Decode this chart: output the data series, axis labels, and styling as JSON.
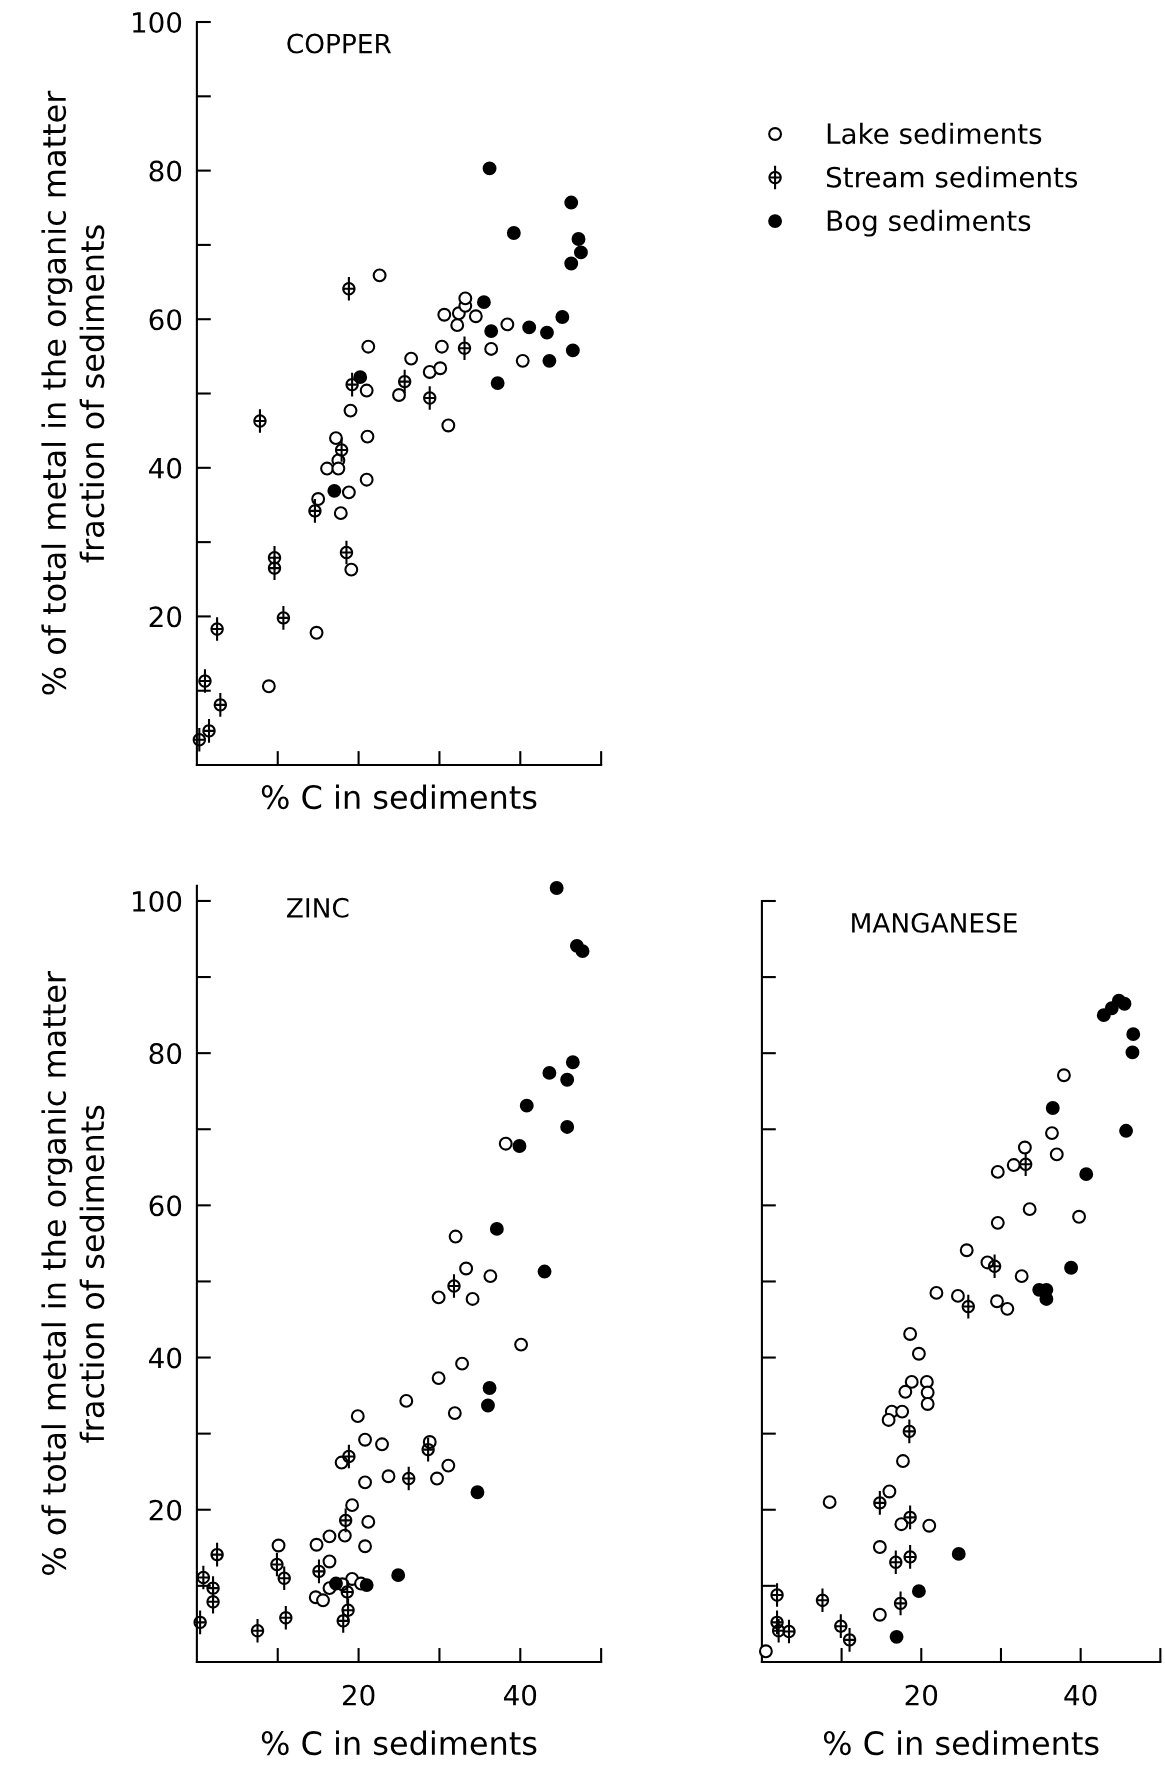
{
  "chart_data": [
    {
      "type": "scatter",
      "title": "COPPER",
      "xlabel": "% C in sediments",
      "ylabel": "% of total metal in the organic matter\nfraction of sediments",
      "xlim": [
        0,
        50
      ],
      "ylim": [
        0,
        100
      ],
      "xticks": [
        {
          "value": 10,
          "label": null
        },
        {
          "value": 20,
          "label": null
        },
        {
          "value": 30,
          "label": null
        },
        {
          "value": 40,
          "label": null
        },
        {
          "value": 50,
          "label": null
        }
      ],
      "yticks": [
        {
          "value": 10,
          "label": null
        },
        20,
        {
          "value": 30,
          "label": null
        },
        40,
        {
          "value": 50,
          "label": null
        },
        60,
        {
          "value": 70,
          "label": null
        },
        80,
        {
          "value": 90,
          "label": null
        },
        100
      ],
      "tick_labels": "y",
      "legend": "right",
      "series": [
        {
          "name": "Lake sediments",
          "color": "#000000",
          "marker": "circle",
          "x": [
            22.6,
            21.2,
            26.5,
            25.0,
            21.0,
            19.0,
            17.2,
            17.5,
            16.1,
            17.5,
            21.1,
            21.0,
            15.0,
            18.8,
            17.8,
            19.1,
            14.8,
            8.9,
            30.3,
            28.8,
            30.1,
            31.1,
            30.6,
            32.2,
            32.4,
            33.2,
            33.2,
            34.5,
            36.4,
            38.4,
            40.3
          ],
          "values": [
            65.9,
            56.3,
            54.7,
            49.8,
            50.4,
            47.7,
            44.0,
            41.0,
            39.9,
            39.9,
            44.2,
            38.4,
            35.8,
            36.7,
            33.9,
            26.3,
            17.8,
            10.6,
            56.3,
            52.9,
            53.4,
            45.7,
            60.6,
            59.2,
            60.8,
            61.8,
            62.8,
            60.4,
            56.0,
            59.3,
            54.4
          ]
        },
        {
          "name": "Stream sediments",
          "color": "#000000",
          "marker": "cross",
          "x": [
            18.8,
            7.8,
            19.2,
            25.7,
            28.8,
            33.1,
            14.6,
            9.6,
            9.6,
            18.5,
            10.7,
            2.5,
            1.0,
            1.5,
            2.9,
            0.3,
            17.9
          ],
          "values": [
            64.1,
            46.3,
            51.2,
            51.6,
            49.4,
            56.1,
            34.2,
            27.9,
            26.5,
            28.6,
            19.8,
            18.3,
            11.3,
            4.6,
            8.1,
            3.4,
            42.4
          ]
        },
        {
          "name": "Bog sediments",
          "color": "#000000",
          "marker": "circle",
          "x": [
            36.2,
            39.2,
            46.3,
            47.2,
            47.5,
            46.3,
            35.5,
            36.4,
            41.1,
            43.3,
            45.2,
            43.6,
            46.5,
            37.2,
            17.0,
            20.2
          ],
          "values": [
            80.3,
            71.6,
            75.7,
            70.8,
            69.0,
            67.5,
            62.3,
            58.4,
            58.9,
            58.2,
            60.3,
            54.4,
            55.8,
            51.4,
            36.9,
            52.2
          ]
        }
      ]
    },
    {
      "type": "scatter",
      "title": "ZINC",
      "xlabel": "% C in sediments",
      "ylabel": "% of total metal in the organic matter\nfraction of sediments",
      "xlim": [
        0,
        50
      ],
      "ylim": [
        0,
        102
      ],
      "xticks": [
        {
          "value": 10,
          "label": null
        },
        20,
        {
          "value": 30,
          "label": null
        },
        40,
        {
          "value": 50,
          "label": null
        }
      ],
      "yticks": [
        {
          "value": 10,
          "label": null
        },
        20,
        {
          "value": 30,
          "label": null
        },
        40,
        {
          "value": 50,
          "label": null
        },
        60,
        {
          "value": 70,
          "label": null
        },
        80,
        {
          "value": 90,
          "label": null
        },
        100
      ],
      "series": [
        {
          "color": "#000000",
          "marker": "circle",
          "x": [
            38.2,
            32.0,
            33.3,
            36.3,
            29.9,
            34.1,
            40.1,
            32.8,
            29.9,
            25.9,
            31.9,
            19.9,
            20.8,
            22.9,
            28.8,
            17.9,
            31.1,
            23.7,
            29.7,
            20.8,
            19.2,
            21.2,
            18.3,
            16.4,
            20.8,
            14.8,
            10.1,
            16.4,
            16.4,
            14.7,
            15.6,
            19.2,
            20.3,
            18.0
          ],
          "values": [
            68.1,
            55.9,
            51.7,
            50.7,
            47.9,
            47.7,
            41.7,
            39.2,
            37.3,
            34.3,
            32.7,
            32.3,
            29.2,
            28.6,
            28.9,
            26.2,
            25.8,
            24.4,
            24.1,
            23.6,
            20.6,
            18.4,
            16.6,
            16.5,
            15.2,
            15.4,
            15.3,
            13.2,
            9.7,
            8.5,
            8.1,
            10.9,
            10.3,
            10.2
          ]
        },
        {
          "color": "#000000",
          "marker": "cross",
          "x": [
            31.8,
            18.8,
            28.6,
            26.2,
            18.4,
            2.5,
            0.8,
            2.0,
            2.0,
            0.4,
            7.5,
            9.9,
            10.8,
            11.0,
            15.1,
            18.7,
            18.1,
            18.6
          ],
          "values": [
            49.4,
            27.0,
            27.9,
            24.1,
            18.6,
            14.1,
            11.1,
            9.7,
            7.9,
            5.2,
            4.1,
            12.8,
            11.0,
            5.8,
            11.9,
            6.8,
            5.4,
            9.2
          ]
        },
        {
          "color": "#000000",
          "marker": "circle",
          "x": [
            44.5,
            47.0,
            47.7,
            46.5,
            43.6,
            45.8,
            40.8,
            39.9,
            45.8,
            37.1,
            43.0,
            36.2,
            36.0,
            34.7,
            24.9,
            17.2,
            21.0
          ],
          "values": [
            101.7,
            94.1,
            93.4,
            78.8,
            77.4,
            76.5,
            73.1,
            67.8,
            70.3,
            56.9,
            51.3,
            36.0,
            33.7,
            22.3,
            11.4,
            10.3,
            10.1
          ]
        }
      ]
    },
    {
      "type": "scatter",
      "title": "MANGANESE",
      "xlabel": "% C in sediments",
      "xlim": [
        0,
        50
      ],
      "ylim": [
        0,
        100
      ],
      "xticks": [
        {
          "value": 10,
          "label": null
        },
        20,
        {
          "value": 30,
          "label": null
        },
        40,
        {
          "value": 50,
          "label": null
        }
      ],
      "yticks": [
        {
          "value": 10,
          "label": null
        },
        {
          "value": 20,
          "label": null
        },
        {
          "value": 30,
          "label": null
        },
        {
          "value": 40,
          "label": null
        },
        {
          "value": 50,
          "label": null
        },
        {
          "value": 60,
          "label": null
        },
        {
          "value": 70,
          "label": null
        },
        {
          "value": 80,
          "label": null
        },
        {
          "value": 90,
          "label": null
        },
        {
          "value": 100,
          "label": null
        }
      ],
      "tick_labels": "x",
      "series": [
        {
          "color": "#000000",
          "marker": "circle",
          "x": [
            37.9,
            36.4,
            33.0,
            37.0,
            31.6,
            29.6,
            33.6,
            39.8,
            29.6,
            25.7,
            28.3,
            32.6,
            21.9,
            24.6,
            29.5,
            30.8,
            18.6,
            19.7,
            18.8,
            20.7,
            18.0,
            20.8,
            20.8,
            16.3,
            17.6,
            15.9,
            17.7,
            16.0,
            8.5,
            17.5,
            21.0,
            14.8,
            14.8,
            0.5
          ],
          "values": [
            77.1,
            69.5,
            67.6,
            66.7,
            65.3,
            64.4,
            59.5,
            58.5,
            57.7,
            54.1,
            52.5,
            50.7,
            48.5,
            48.1,
            47.4,
            46.4,
            43.1,
            40.5,
            36.8,
            36.8,
            35.5,
            35.4,
            33.9,
            32.9,
            32.9,
            31.8,
            26.4,
            22.4,
            21.0,
            18.1,
            17.9,
            15.1,
            6.2,
            1.4
          ]
        },
        {
          "color": "#000000",
          "marker": "cross",
          "x": [
            33.1,
            29.2,
            25.9,
            18.5,
            14.8,
            18.6,
            18.6,
            16.8,
            17.4,
            7.6,
            9.9,
            11.0,
            1.9,
            1.9,
            2.1,
            3.4
          ],
          "values": [
            65.4,
            52.0,
            46.7,
            30.3,
            20.9,
            19.0,
            13.8,
            13.1,
            7.7,
            8.1,
            4.7,
            2.9,
            8.8,
            5.2,
            4.1,
            4.0
          ]
        },
        {
          "color": "#000000",
          "marker": "circle",
          "x": [
            42.9,
            43.9,
            44.8,
            45.5,
            46.6,
            46.5,
            45.7,
            36.5,
            40.7,
            38.8,
            34.8,
            35.7,
            35.7,
            24.7,
            19.7,
            16.9
          ],
          "values": [
            85.0,
            85.9,
            86.9,
            86.5,
            82.5,
            80.1,
            69.8,
            72.8,
            64.1,
            51.8,
            48.9,
            48.9,
            47.7,
            14.2,
            9.3,
            3.3
          ]
        }
      ]
    }
  ]
}
